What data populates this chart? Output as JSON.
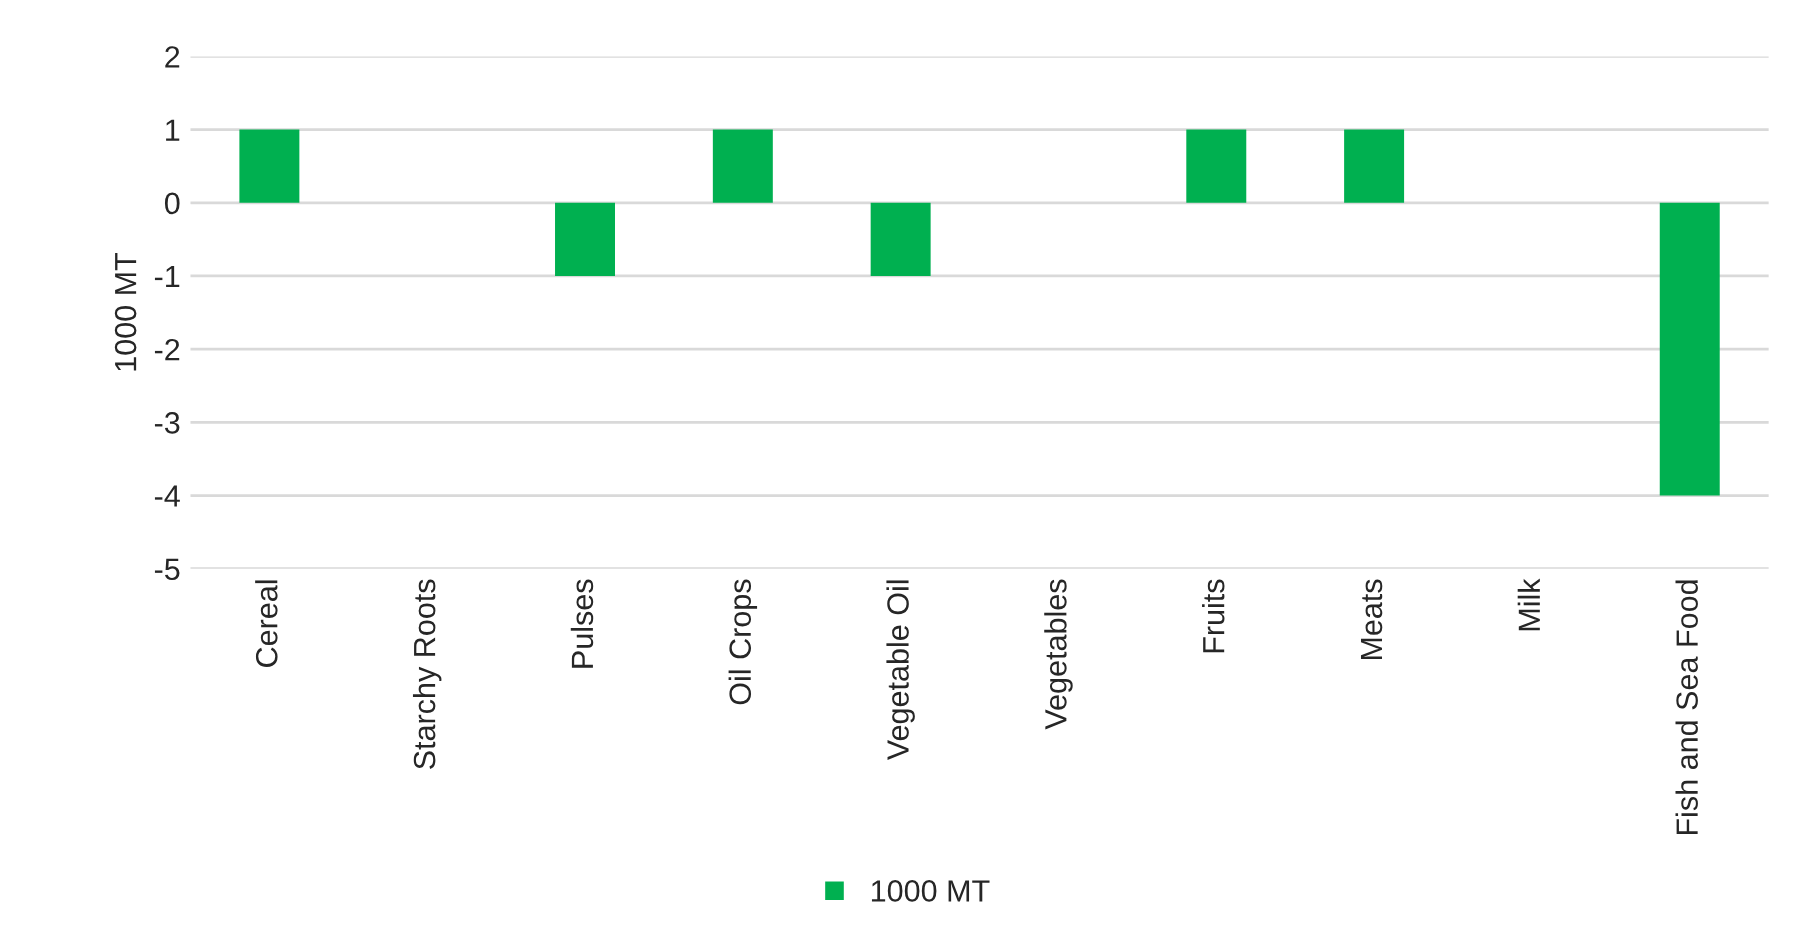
{
  "chart_data": {
    "type": "bar",
    "ylabel": "1000 MT",
    "categories": [
      "Cereal",
      "Starchy Roots",
      "Pulses",
      "Oil Crops",
      "Vegetable Oil",
      "Vegetables",
      "Fruits",
      "Meats",
      "Milk",
      "Fish and Sea Food"
    ],
    "series": [
      {
        "name": "1000 MT",
        "color": "#00b050",
        "values": [
          1,
          0,
          -1,
          1,
          -1,
          0,
          1,
          1,
          0,
          -4
        ]
      }
    ],
    "ylim": [
      -5,
      2
    ],
    "yticks": [
      -5,
      -4,
      -3,
      -2,
      -1,
      0,
      1,
      2
    ],
    "grid": "y",
    "legend": "bottom"
  }
}
